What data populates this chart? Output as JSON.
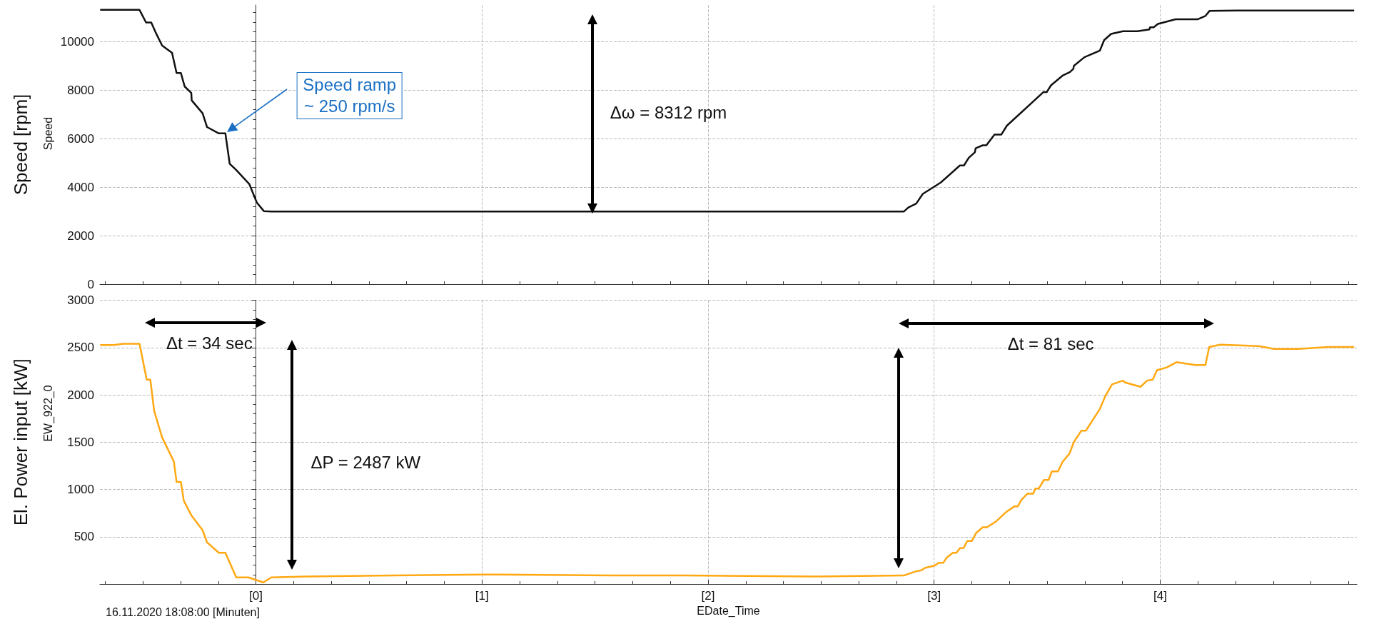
{
  "chart_data": [
    {
      "type": "line",
      "ylabel": "Speed [rpm]",
      "xlim": [
        -0.69,
        4.87
      ],
      "xticks": [
        {
          "value": 0,
          "label": null
        },
        {
          "value": 1,
          "label": null
        },
        {
          "value": 2,
          "label": null
        },
        {
          "value": 3,
          "label": null
        },
        {
          "value": 4,
          "label": null
        }
      ],
      "ylim": [
        0,
        11500
      ],
      "yticks": [
        0,
        2000,
        4000,
        6000,
        8000,
        10000
      ],
      "grid": true,
      "tick_labels": "y",
      "x": [
        -0.689,
        -0.515,
        -0.486,
        -0.463,
        -0.444,
        -0.415,
        -0.371,
        -0.351,
        -0.332,
        -0.315,
        -0.286,
        -0.284,
        -0.236,
        -0.216,
        -0.164,
        -0.135,
        -0.116,
        -0.087,
        -0.029,
        0.004,
        0.035,
        0.068,
        0.5,
        1.0,
        1.5,
        2.0,
        2.5,
        2.866,
        2.886,
        2.921,
        2.95,
        2.998,
        3.031,
        3.114,
        3.132,
        3.153,
        3.18,
        3.184,
        3.215,
        3.231,
        3.267,
        3.297,
        3.322,
        3.483,
        3.498,
        3.517,
        3.568,
        3.601,
        3.616,
        3.618,
        3.665,
        3.733,
        3.752,
        3.783,
        3.835,
        3.899,
        3.952,
        3.955,
        3.971,
        3.99,
        4.068,
        4.165,
        4.2,
        4.219,
        4.339,
        4.858
      ],
      "series": [
        {
          "color": "#111111",
          "values": [
            11300,
            11300,
            10780,
            10780,
            10380,
            9830,
            9530,
            8700,
            8700,
            8140,
            7880,
            7570,
            7040,
            6470,
            6210,
            6210,
            4960,
            4700,
            4120,
            3360,
            3010,
            2990,
            2990,
            2990,
            2990,
            2990,
            2990,
            2990,
            3160,
            3320,
            3720,
            4000,
            4200,
            4890,
            4890,
            5200,
            5430,
            5600,
            5720,
            5720,
            6160,
            6160,
            6530,
            7910,
            7910,
            8190,
            8590,
            8740,
            8870,
            8990,
            9350,
            9620,
            10050,
            10310,
            10420,
            10420,
            10490,
            10580,
            10580,
            10720,
            10910,
            10910,
            11050,
            11260,
            11270,
            11270
          ]
        }
      ],
      "annotations": [
        "Speed ramp\n~ 250 rpm/s",
        "Δω = 8312 rpm",
        "Speed"
      ]
    },
    {
      "type": "line",
      "ylabel": "El. Power input [kW]",
      "xlabel": "EDate_Time",
      "xlim": [
        -0.69,
        4.87
      ],
      "xticks": [
        {
          "value": 0,
          "label": "[0]"
        },
        {
          "value": 1,
          "label": "[1]"
        },
        {
          "value": 2,
          "label": "[2]"
        },
        {
          "value": 3,
          "label": "[3]"
        },
        {
          "value": 4,
          "label": "[4]"
        }
      ],
      "ylim": [
        0,
        3000
      ],
      "yticks": [
        500,
        1000,
        1500,
        2000,
        2500,
        3000
      ],
      "grid": true,
      "x": [
        -0.689,
        -0.627,
        -0.589,
        -0.515,
        -0.483,
        -0.467,
        -0.45,
        -0.415,
        -0.363,
        -0.351,
        -0.332,
        -0.319,
        -0.284,
        -0.236,
        -0.216,
        -0.164,
        -0.135,
        -0.087,
        -0.033,
        0.033,
        0.068,
        0.222,
        0.608,
        0.994,
        1.071,
        1.573,
        1.897,
        2.479,
        2.866,
        2.921,
        2.944,
        2.959,
        3.002,
        3.021,
        3.041,
        3.056,
        3.083,
        3.099,
        3.114,
        3.13,
        3.147,
        3.167,
        3.186,
        3.215,
        3.234,
        3.273,
        3.318,
        3.355,
        3.37,
        3.386,
        3.413,
        3.438,
        3.448,
        3.463,
        3.486,
        3.506,
        3.521,
        3.548,
        3.568,
        3.599,
        3.618,
        3.651,
        3.671,
        3.733,
        3.758,
        3.787,
        3.835,
        3.845,
        3.913,
        3.942,
        3.967,
        3.986,
        4.029,
        4.072,
        4.155,
        4.2,
        4.217,
        4.266,
        4.436,
        4.504,
        4.61,
        4.746,
        4.858
      ],
      "series": [
        {
          "color": "#ffa812",
          "values": [
            2527,
            2527,
            2540,
            2540,
            2160,
            2160,
            1830,
            1550,
            1295,
            1080,
            1080,
            880,
            720,
            570,
            440,
            330,
            330,
            70,
            70,
            17,
            70,
            80,
            90,
            100,
            100,
            90,
            90,
            80,
            90,
            135,
            145,
            170,
            195,
            225,
            225,
            280,
            330,
            330,
            380,
            380,
            455,
            455,
            540,
            600,
            600,
            660,
            760,
            820,
            820,
            890,
            955,
            955,
            1010,
            1010,
            1100,
            1100,
            1190,
            1190,
            1290,
            1380,
            1500,
            1620,
            1620,
            1850,
            1990,
            2110,
            2150,
            2130,
            2085,
            2150,
            2160,
            2260,
            2290,
            2345,
            2315,
            2315,
            2505,
            2530,
            2515,
            2485,
            2485,
            2505,
            2505
          ]
        }
      ],
      "annotations": [
        "Δt = 34 sec",
        "ΔP = 2487 kW",
        "Δt = 81 sec",
        "EW_922_0",
        "16.11.2020 18:08:00 [Minuten]"
      ]
    }
  ]
}
